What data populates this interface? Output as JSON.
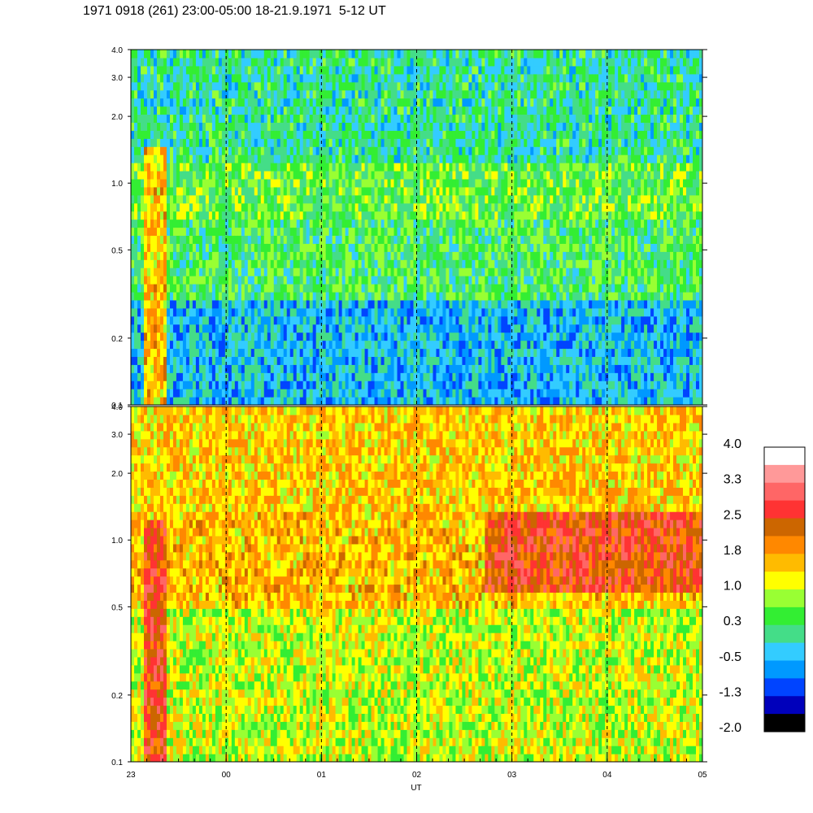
{
  "title": "1971 0918 (261) 23:00-05:00 18-21.9.1971  5-12 UT",
  "chart_data": {
    "type": "heatmap",
    "xlabel": "UT",
    "x_ticks": [
      "23",
      "00",
      "01",
      "02",
      "03",
      "04",
      "05"
    ],
    "x_range_hours": [
      23,
      29
    ],
    "y_scale": "log",
    "y_range": [
      0.1,
      4.0
    ],
    "y_ticks": [
      {
        "value": 0.1,
        "label": "0.1"
      },
      {
        "value": 0.2,
        "label": "0.2"
      },
      {
        "value": 0.5,
        "label": "0.5"
      },
      {
        "value": 1.0,
        "label": "1.0"
      },
      {
        "value": 2.0,
        "label": "2.0"
      },
      {
        "value": 3.0,
        "label": "3.0"
      },
      {
        "value": 4.0,
        "label": "4.0"
      }
    ],
    "panels": [
      {
        "name": "",
        "dominant": "green / cyan",
        "bands": [
          {
            "y_from": 0.1,
            "y_to": 0.3,
            "level": -0.5
          },
          {
            "y_from": 0.3,
            "y_to": 0.7,
            "level": 0.3
          },
          {
            "y_from": 0.7,
            "y_to": 1.2,
            "level": 0.5
          },
          {
            "y_from": 1.2,
            "y_to": 4.0,
            "level": 0.0
          }
        ],
        "features": [
          {
            "x": 0.25,
            "y_from": 0.1,
            "y_to": 1.5,
            "level": 1.6,
            "note": "yellow/orange vertical streak"
          }
        ]
      },
      {
        "name": "",
        "dominant": "yellow / orange",
        "bands": [
          {
            "y_from": 0.1,
            "y_to": 0.5,
            "level": 1.0
          },
          {
            "y_from": 0.5,
            "y_to": 1.3,
            "level": 1.6
          },
          {
            "y_from": 1.3,
            "y_to": 4.0,
            "level": 1.5
          }
        ],
        "features": [
          {
            "x": 0.25,
            "y_from": 0.1,
            "y_to": 1.2,
            "level": 2.6,
            "note": "red vertical streak"
          },
          {
            "x_from": 3.7,
            "x_to": 6.0,
            "y_from": 0.6,
            "y_to": 1.3,
            "level": 2.6,
            "note": "red enhancement"
          }
        ]
      }
    ],
    "colorbar": {
      "labels": [
        "4.0",
        "3.3",
        "2.5",
        "1.8",
        "1.0",
        "0.3",
        "-0.5",
        "-1.3",
        "-2.0"
      ],
      "colors": [
        "#ffffff",
        "#ff9999",
        "#ff6666",
        "#ff3333",
        "#cc6600",
        "#ff8800",
        "#ffbb00",
        "#ffff00",
        "#99ff33",
        "#33ee33",
        "#44dd88",
        "#33ccff",
        "#0099ff",
        "#0044ff",
        "#0000bb",
        "#000000"
      ]
    },
    "grid": false,
    "dashed_time_markers": [
      "00",
      "01",
      "02",
      "03",
      "04"
    ]
  }
}
